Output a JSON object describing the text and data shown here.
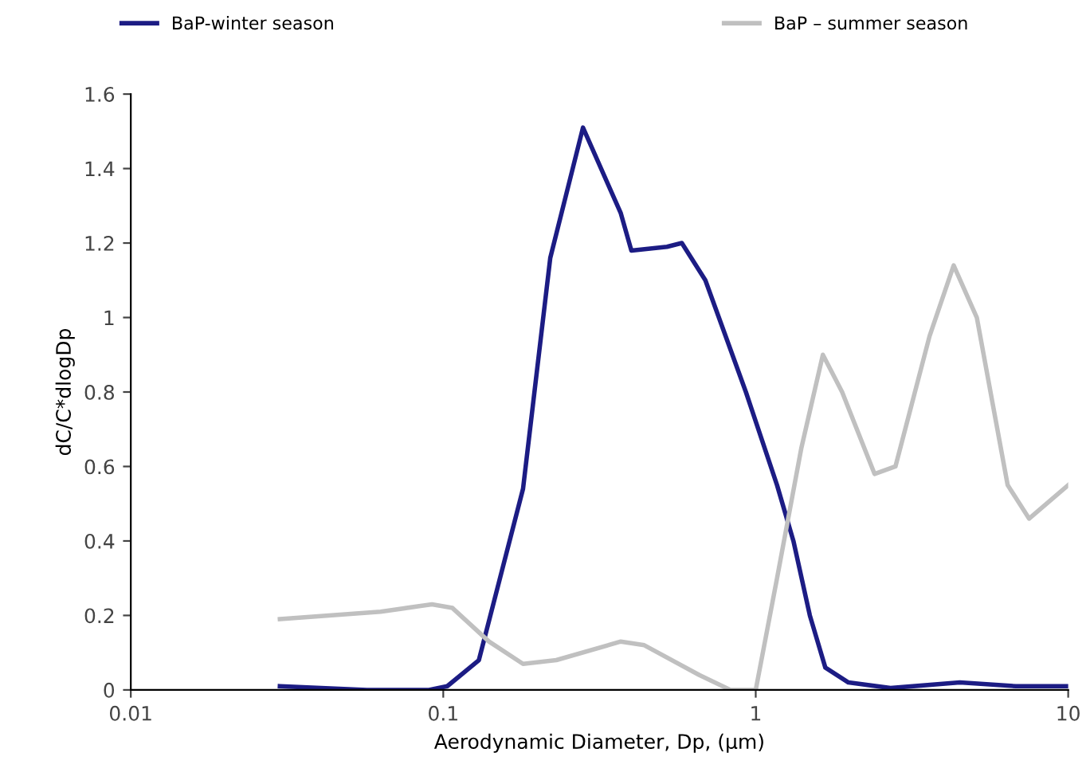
{
  "chart_data": {
    "type": "line",
    "xlabel": "Aerodynamic Diameter, Dp, (µm)",
    "ylabel": "dC/C*dlogDp",
    "log": "x",
    "xlim": [
      0.01,
      10
    ],
    "xticks": [
      0.01,
      0.1,
      1,
      10
    ],
    "ylim": [
      0,
      1.6
    ],
    "yticks": [
      0,
      0.2,
      0.4,
      0.6,
      0.8,
      1,
      1.2,
      1.4,
      1.6
    ],
    "grid": false,
    "legend": "top",
    "marker": "none",
    "line_style": "solid",
    "series": [
      {
        "name": "BaP-winter season",
        "color": "#1c1c84",
        "x": [
          0.03,
          0.057,
          0.09,
          0.103,
          0.13,
          0.18,
          0.22,
          0.28,
          0.37,
          0.4,
          0.52,
          0.58,
          0.69,
          0.93,
          1.17,
          1.32,
          1.49,
          1.67,
          1.98,
          2.7,
          4.5,
          6.8,
          10
        ],
        "values": [
          0.01,
          0.0,
          0.0,
          0.01,
          0.08,
          0.54,
          1.16,
          1.51,
          1.28,
          1.18,
          1.19,
          1.2,
          1.1,
          0.8,
          0.55,
          0.4,
          0.2,
          0.06,
          0.02,
          0.005,
          0.02,
          0.01,
          0.01
        ]
      },
      {
        "name": "BaP – summer season",
        "color": "#c0c0c0",
        "x": [
          0.03,
          0.063,
          0.092,
          0.107,
          0.14,
          0.18,
          0.23,
          0.37,
          0.44,
          0.66,
          0.83,
          1.0,
          1.17,
          1.4,
          1.64,
          1.89,
          2.4,
          2.8,
          3.6,
          4.3,
          5.1,
          6.4,
          7.5,
          10
        ],
        "values": [
          0.19,
          0.21,
          0.23,
          0.22,
          0.13,
          0.07,
          0.08,
          0.13,
          0.12,
          0.04,
          0.0,
          0.0,
          0.3,
          0.65,
          0.9,
          0.8,
          0.58,
          0.6,
          0.95,
          1.14,
          1.0,
          0.55,
          0.46,
          0.55
        ]
      }
    ]
  }
}
